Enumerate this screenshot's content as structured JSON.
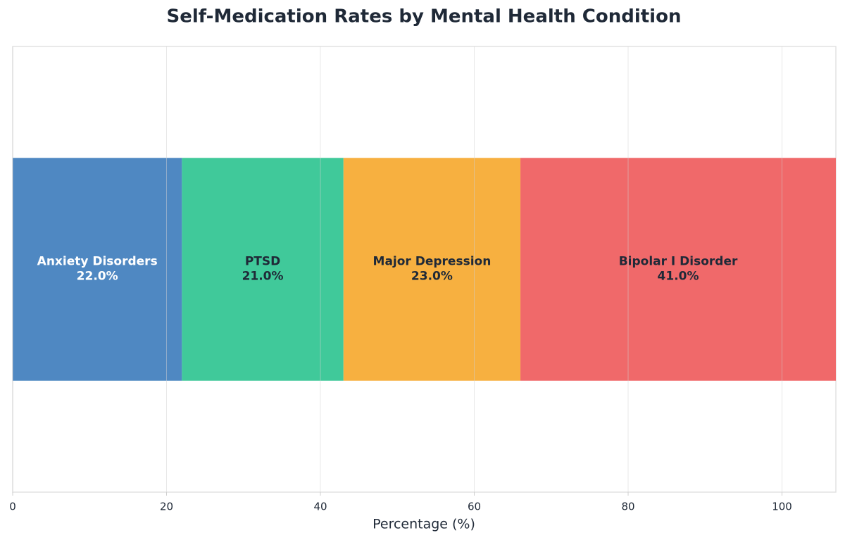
{
  "chart_data": {
    "type": "stacked-barh",
    "title": "Self-Medication Rates by Mental Health Condition",
    "xlabel": "Percentage (%)",
    "categories": [
      null
    ],
    "series": [
      {
        "name": "Anxiety Disorders",
        "color": "#4f88c2",
        "label_color": "#ffffff",
        "values": [
          22
        ],
        "value_labels": [
          "22.0%"
        ]
      },
      {
        "name": "PTSD",
        "color": "#40c99a",
        "label_color": "#1f2937",
        "values": [
          21
        ],
        "value_labels": [
          "21.0%"
        ]
      },
      {
        "name": "Major Depression",
        "color": "#f7b040",
        "label_color": "#1f2937",
        "values": [
          23
        ],
        "value_labels": [
          "23.0%"
        ]
      },
      {
        "name": "Bipolar I Disorder",
        "color": "#f0696a",
        "label_color": "#1f2937",
        "values": [
          41
        ],
        "value_labels": [
          "41.0%"
        ]
      }
    ],
    "xlim": [
      0,
      107
    ],
    "xticks": [
      0,
      20,
      40,
      60,
      80,
      100
    ],
    "grid": true
  }
}
